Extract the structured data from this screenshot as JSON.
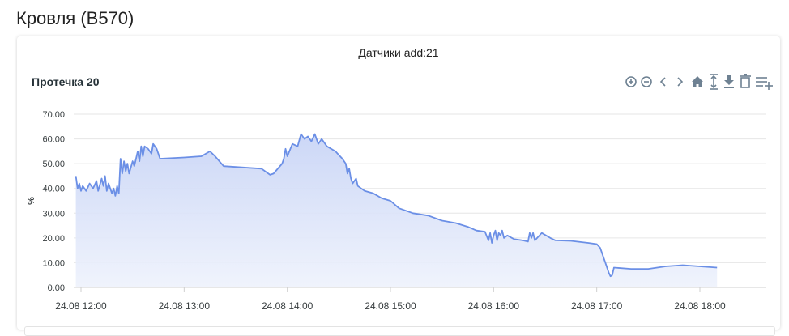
{
  "page": {
    "title": "Кровля (B570)"
  },
  "card": {
    "header": "Датчики add:21"
  },
  "toolbar": {
    "icons": [
      "zoom-in-icon",
      "zoom-out-icon",
      "pan-left-icon",
      "pan-right-icon",
      "home-icon",
      "selection-icon",
      "download-icon",
      "trash-icon",
      "menu-icon"
    ]
  },
  "colors": {
    "series": "#6b8fe6",
    "fill_top": "#c9d5f6",
    "fill_bottom": "#eef2fc",
    "grid": "#e6e6e6"
  },
  "chart_data": {
    "type": "area",
    "title": "Протечка 20",
    "ylabel": "%",
    "xlabel": "",
    "ylim": [
      0,
      70
    ],
    "xlim": [
      "24.08 11:58",
      "24.08 18:30"
    ],
    "y_ticks": [
      "0.00",
      "10.00",
      "20.00",
      "30.00",
      "40.00",
      "50.00",
      "60.00",
      "70.00"
    ],
    "x_ticks": [
      "24.08 12:00",
      "24.08 13:00",
      "24.08 14:00",
      "24.08 15:00",
      "24.08 16:00",
      "24.08 17:00",
      "24.08 18:00"
    ],
    "grid": true,
    "series": [
      {
        "values": [
          [
            "24.08 11:57",
            45
          ],
          [
            "24.08 11:58",
            40
          ],
          [
            "24.08 11:59",
            42
          ],
          [
            "24.08 12:00",
            39
          ],
          [
            "24.08 12:01",
            41
          ],
          [
            "24.08 12:03",
            39
          ],
          [
            "24.08 12:05",
            42
          ],
          [
            "24.08 12:07",
            40
          ],
          [
            "24.08 12:09",
            43
          ],
          [
            "24.08 12:10",
            39
          ],
          [
            "24.08 12:12",
            44
          ],
          [
            "24.08 12:13",
            41
          ],
          [
            "24.08 12:14",
            45
          ],
          [
            "24.08 12:15",
            39
          ],
          [
            "24.08 12:16",
            42
          ],
          [
            "24.08 12:18",
            38
          ],
          [
            "24.08 12:19",
            40
          ],
          [
            "24.08 12:20",
            37
          ],
          [
            "24.08 12:21",
            41
          ],
          [
            "24.08 12:22",
            38
          ],
          [
            "24.08 12:23",
            52
          ],
          [
            "24.08 12:24",
            46
          ],
          [
            "24.08 12:25",
            51
          ],
          [
            "24.08 12:26",
            47
          ],
          [
            "24.08 12:27",
            50
          ],
          [
            "24.08 12:28",
            46
          ],
          [
            "24.08 12:30",
            51
          ],
          [
            "24.08 12:31",
            49
          ],
          [
            "24.08 12:33",
            55
          ],
          [
            "24.08 12:34",
            51
          ],
          [
            "24.08 12:35",
            57
          ],
          [
            "24.08 12:36",
            53
          ],
          [
            "24.08 12:37",
            57
          ],
          [
            "24.08 12:39",
            56
          ],
          [
            "24.08 12:41",
            54
          ],
          [
            "24.08 12:42",
            58
          ],
          [
            "24.08 12:44",
            56
          ],
          [
            "24.08 12:46",
            52
          ],
          [
            "24.08 13:00",
            52.5
          ],
          [
            "24.08 13:10",
            53
          ],
          [
            "24.08 13:15",
            55
          ],
          [
            "24.08 13:18",
            53
          ],
          [
            "24.08 13:23",
            49
          ],
          [
            "24.08 13:45",
            48
          ],
          [
            "24.08 13:50",
            45.5
          ],
          [
            "24.08 13:52",
            46
          ],
          [
            "24.08 13:57",
            50
          ],
          [
            "24.08 13:58",
            52
          ],
          [
            "24.08 13:59",
            56
          ],
          [
            "24.08 14:00",
            53
          ],
          [
            "24.08 14:03",
            58
          ],
          [
            "24.08 14:06",
            57
          ],
          [
            "24.08 14:08",
            62
          ],
          [
            "24.08 14:10",
            60
          ],
          [
            "24.08 14:12",
            61
          ],
          [
            "24.08 14:14",
            59
          ],
          [
            "24.08 14:16",
            62
          ],
          [
            "24.08 14:18",
            58
          ],
          [
            "24.08 14:20",
            60
          ],
          [
            "24.08 14:23",
            57
          ],
          [
            "24.08 14:28",
            55
          ],
          [
            "24.08 14:32",
            52
          ],
          [
            "24.08 14:34",
            50
          ],
          [
            "24.08 14:35",
            46
          ],
          [
            "24.08 14:36",
            48
          ],
          [
            "24.08 14:37",
            44
          ],
          [
            "24.08 14:38",
            42
          ],
          [
            "24.08 14:40",
            44
          ],
          [
            "24.08 14:41",
            41
          ],
          [
            "24.08 14:45",
            39
          ],
          [
            "24.08 14:50",
            38
          ],
          [
            "24.08 14:55",
            36
          ],
          [
            "24.08 15:00",
            35
          ],
          [
            "24.08 15:05",
            32
          ],
          [
            "24.08 15:13",
            30
          ],
          [
            "24.08 15:22",
            29
          ],
          [
            "24.08 15:30",
            27
          ],
          [
            "24.08 15:38",
            26
          ],
          [
            "24.08 15:45",
            24.5
          ],
          [
            "24.08 15:50",
            23
          ],
          [
            "24.08 15:55",
            22.5
          ],
          [
            "24.08 15:57",
            19
          ],
          [
            "24.08 15:58",
            22
          ],
          [
            "24.08 15:59",
            18
          ],
          [
            "24.08 16:00",
            21
          ],
          [
            "24.08 16:01",
            23
          ],
          [
            "24.08 16:02",
            19
          ],
          [
            "24.08 16:03",
            22
          ],
          [
            "24.08 16:04",
            21
          ],
          [
            "24.08 16:05",
            23
          ],
          [
            "24.08 16:06",
            20
          ],
          [
            "24.08 16:08",
            21
          ],
          [
            "24.08 16:12",
            19.5
          ],
          [
            "24.08 16:17",
            19
          ],
          [
            "24.08 16:20",
            18.5
          ],
          [
            "24.08 16:21",
            22
          ],
          [
            "24.08 16:22",
            20
          ],
          [
            "24.08 16:23",
            22
          ],
          [
            "24.08 16:24",
            19
          ],
          [
            "24.08 16:28",
            22
          ],
          [
            "24.08 16:33",
            20
          ],
          [
            "24.08 16:36",
            19
          ],
          [
            "24.08 16:45",
            18.8
          ],
          [
            "24.08 16:55",
            18
          ],
          [
            "24.08 17:00",
            17.5
          ],
          [
            "24.08 17:02",
            16
          ],
          [
            "24.08 17:05",
            10
          ],
          [
            "24.08 17:07",
            6
          ],
          [
            "24.08 17:08",
            4.5
          ],
          [
            "24.08 17:09",
            5
          ],
          [
            "24.08 17:10",
            8
          ],
          [
            "24.08 17:20",
            7.5
          ],
          [
            "24.08 17:30",
            7.5
          ],
          [
            "24.08 17:40",
            8.5
          ],
          [
            "24.08 17:50",
            9
          ],
          [
            "24.08 18:00",
            8.5
          ],
          [
            "24.08 18:10",
            8
          ]
        ]
      }
    ]
  }
}
